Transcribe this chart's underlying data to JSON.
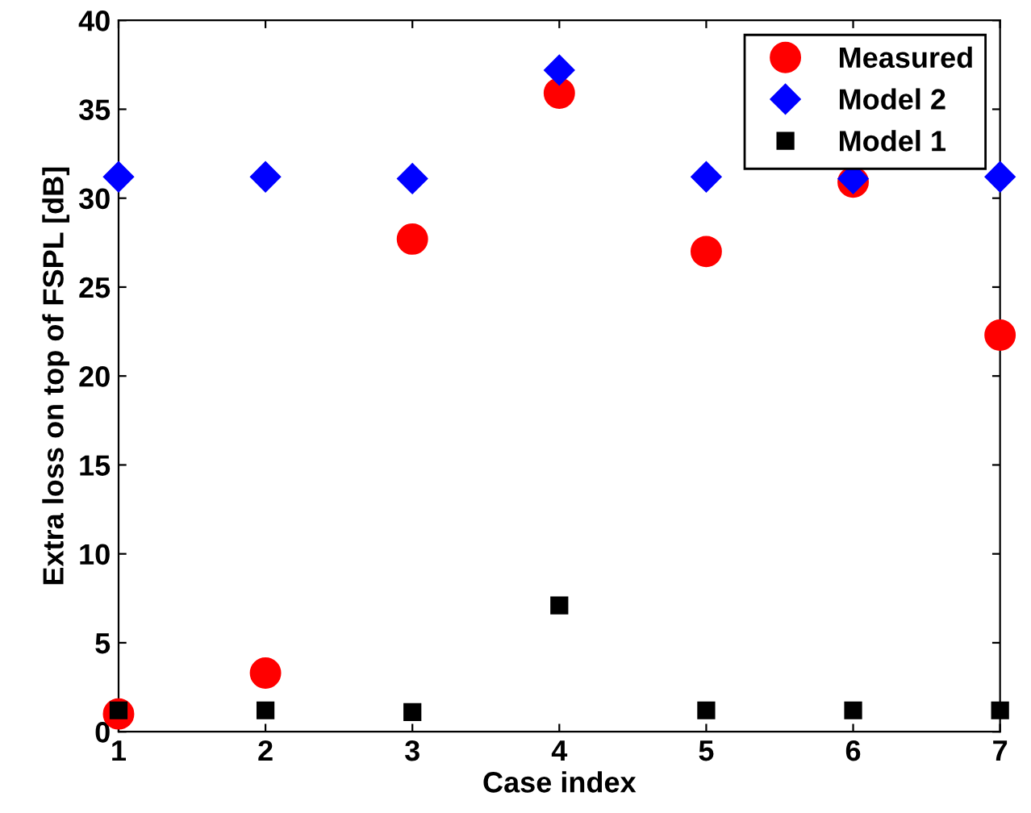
{
  "chart_data": {
    "type": "scatter",
    "xlabel": "Case index",
    "ylabel": "Extra loss on top of FSPL [dB]",
    "x": [
      1,
      2,
      3,
      4,
      5,
      6,
      7
    ],
    "series": [
      {
        "name": "Measured",
        "color": "#ff0000",
        "marker": "circle",
        "values": [
          1.0,
          3.3,
          27.7,
          35.9,
          27.0,
          30.9,
          22.3
        ]
      },
      {
        "name": "Model 2",
        "color": "#0000ff",
        "marker": "diamond",
        "values": [
          31.2,
          31.2,
          31.1,
          37.2,
          31.2,
          31.1,
          31.2
        ]
      },
      {
        "name": "Model 1",
        "color": "#000000",
        "marker": "square",
        "values": [
          1.2,
          1.2,
          1.1,
          7.1,
          1.2,
          1.2,
          1.2
        ]
      }
    ],
    "xlim": [
      1,
      7
    ],
    "xticks": [
      1,
      2,
      3,
      4,
      5,
      6,
      7
    ],
    "ylim": [
      0,
      40
    ],
    "yticks": [
      0,
      5,
      10,
      15,
      20,
      25,
      30,
      35,
      40
    ],
    "grid": false,
    "legend": "top right"
  }
}
